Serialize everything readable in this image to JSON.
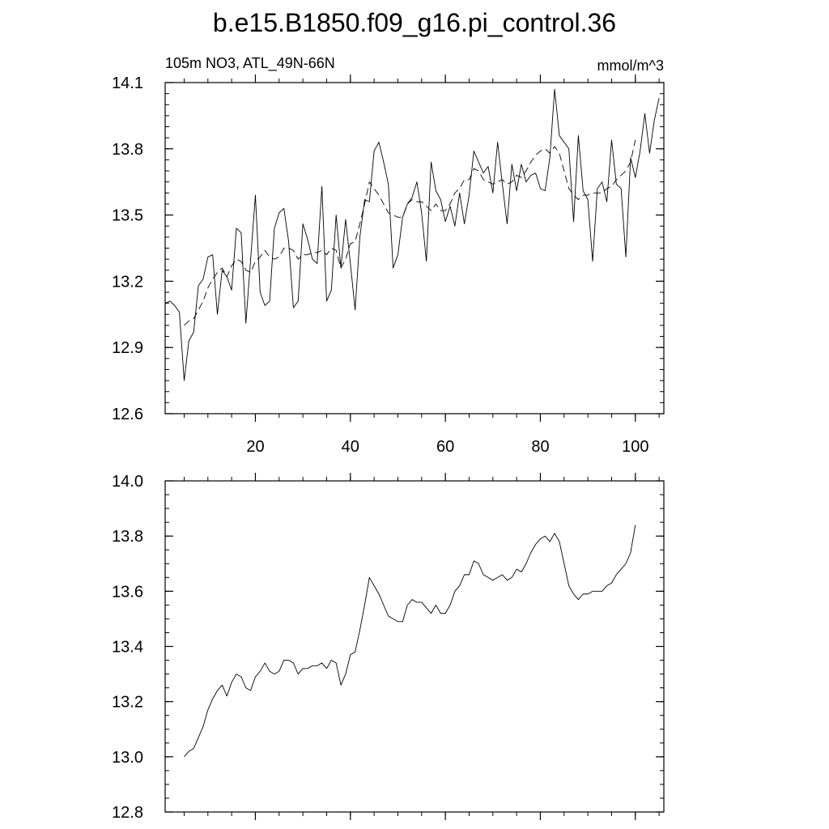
{
  "title": "b.e15.B1850.f09_g16.pi_control.36",
  "chart_data": [
    {
      "type": "line",
      "left_label": "105m NO3, ATL_49N-66N",
      "right_label": "mmol/m^3",
      "xlim": [
        1,
        106
      ],
      "ylim": [
        12.6,
        14.1
      ],
      "xticks": [
        20,
        40,
        60,
        80,
        100
      ],
      "xtick_labels": [
        "20",
        "40",
        "60",
        "80",
        "100"
      ],
      "yticks": [
        12.6,
        12.9,
        13.2,
        13.5,
        13.8,
        14.1
      ],
      "ytick_labels": [
        "12.6",
        "12.9",
        "13.2",
        "13.5",
        "13.8",
        "14.1"
      ],
      "grid": false,
      "series": [
        {
          "style": "solid",
          "x_start": 1,
          "values": [
            13.1,
            13.11,
            13.09,
            13.06,
            12.75,
            12.93,
            12.97,
            13.18,
            13.21,
            13.31,
            13.32,
            13.05,
            13.25,
            13.22,
            13.16,
            13.44,
            13.42,
            13.01,
            13.3,
            13.59,
            13.15,
            13.09,
            13.11,
            13.44,
            13.51,
            13.53,
            13.38,
            13.08,
            13.11,
            13.46,
            13.39,
            13.3,
            13.28,
            13.63,
            13.11,
            13.16,
            13.5,
            13.26,
            13.48,
            13.28,
            13.07,
            13.4,
            13.57,
            13.56,
            13.79,
            13.83,
            13.74,
            13.64,
            13.26,
            13.32,
            13.49,
            13.55,
            13.58,
            13.65,
            13.51,
            13.29,
            13.74,
            13.61,
            13.57,
            13.47,
            13.54,
            13.45,
            13.6,
            13.46,
            13.59,
            13.79,
            13.74,
            13.69,
            13.72,
            13.6,
            13.83,
            13.64,
            13.46,
            13.73,
            13.61,
            13.73,
            13.65,
            13.68,
            13.69,
            13.62,
            13.61,
            13.76,
            14.07,
            13.86,
            13.83,
            13.8,
            13.47,
            13.86,
            13.61,
            13.57,
            13.29,
            13.62,
            13.65,
            13.56,
            13.84,
            13.64,
            13.62,
            13.31,
            13.76,
            13.67,
            13.79,
            13.96,
            13.78,
            13.93,
            14.03
          ]
        },
        {
          "style": "dashed",
          "x_start": 5,
          "values": [
            13.0,
            13.02,
            13.03,
            13.07,
            13.11,
            13.17,
            13.21,
            13.24,
            13.26,
            13.22,
            13.27,
            13.3,
            13.29,
            13.25,
            13.24,
            13.29,
            13.31,
            13.34,
            13.31,
            13.3,
            13.31,
            13.35,
            13.35,
            13.34,
            13.3,
            13.32,
            13.32,
            13.33,
            13.33,
            13.34,
            13.32,
            13.35,
            13.34,
            13.26,
            13.3,
            13.37,
            13.38,
            13.46,
            13.55,
            13.65,
            13.62,
            13.59,
            13.55,
            13.51,
            13.5,
            13.49,
            13.49,
            13.55,
            13.57,
            13.56,
            13.56,
            13.54,
            13.52,
            13.55,
            13.52,
            13.52,
            13.55,
            13.6,
            13.62,
            13.66,
            13.66,
            13.71,
            13.7,
            13.66,
            13.65,
            13.64,
            13.65,
            13.66,
            13.64,
            13.65,
            13.68,
            13.67,
            13.7,
            13.74,
            13.77,
            13.79,
            13.8,
            13.78,
            13.81,
            13.78,
            13.7,
            13.62,
            13.59,
            13.57,
            13.59,
            13.59,
            13.6,
            13.6,
            13.6,
            13.62,
            13.63,
            13.66,
            13.68,
            13.7,
            13.74,
            13.84
          ]
        }
      ]
    },
    {
      "type": "line",
      "xlim": [
        1,
        106
      ],
      "ylim": [
        12.8,
        14.0
      ],
      "xticks": [
        20,
        40,
        60,
        80,
        100
      ],
      "xtick_labels": [],
      "yticks": [
        12.8,
        13.0,
        13.2,
        13.4,
        13.6,
        13.8,
        14.0
      ],
      "ytick_labels": [
        "12.8",
        "13.0",
        "13.2",
        "13.4",
        "13.6",
        "13.8",
        "14.0"
      ],
      "grid": false,
      "series": [
        {
          "style": "solid",
          "x_start": 5,
          "values": [
            13.0,
            13.02,
            13.03,
            13.07,
            13.11,
            13.17,
            13.21,
            13.24,
            13.26,
            13.22,
            13.27,
            13.3,
            13.29,
            13.25,
            13.24,
            13.29,
            13.31,
            13.34,
            13.31,
            13.3,
            13.31,
            13.35,
            13.35,
            13.34,
            13.3,
            13.32,
            13.32,
            13.33,
            13.33,
            13.34,
            13.32,
            13.35,
            13.34,
            13.26,
            13.3,
            13.37,
            13.38,
            13.46,
            13.55,
            13.65,
            13.62,
            13.59,
            13.55,
            13.51,
            13.5,
            13.49,
            13.49,
            13.55,
            13.57,
            13.56,
            13.56,
            13.54,
            13.52,
            13.55,
            13.52,
            13.52,
            13.55,
            13.6,
            13.62,
            13.66,
            13.66,
            13.71,
            13.7,
            13.66,
            13.65,
            13.64,
            13.65,
            13.66,
            13.64,
            13.65,
            13.68,
            13.67,
            13.7,
            13.74,
            13.77,
            13.79,
            13.8,
            13.78,
            13.81,
            13.78,
            13.7,
            13.62,
            13.59,
            13.57,
            13.59,
            13.59,
            13.6,
            13.6,
            13.6,
            13.62,
            13.63,
            13.66,
            13.68,
            13.7,
            13.74,
            13.84
          ]
        }
      ]
    }
  ]
}
